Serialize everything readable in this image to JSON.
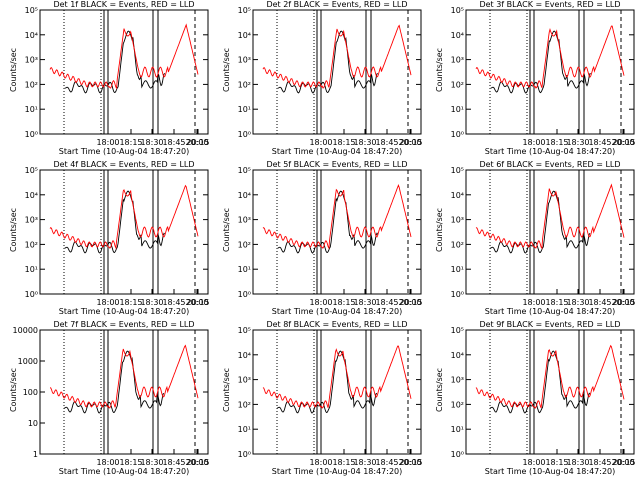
{
  "figure": {
    "start_time_label": "Start Time (10-Aug-04 18:47:20)",
    "ylabel": "Counts/sec",
    "time_ticks": [
      "18:00",
      "18:15",
      "18:30",
      "18:45",
      "20:00",
      "20:15"
    ],
    "colors": {
      "events": "#000000",
      "lld": "#ff0000",
      "background": "#ffffff"
    }
  },
  "chart_data": [
    {
      "type": "line",
      "title": "Det 1f BLACK = Events, RED = LLD",
      "ylabel": "Counts/sec",
      "xlabel": "Start Time (10-Aug-04 18:47:20)",
      "yscale": "log",
      "ylim": [
        1,
        100000
      ],
      "ytick_labels": [
        "10⁰",
        "10¹",
        "10²",
        "10³",
        "10⁴",
        "10⁵"
      ],
      "grid": false,
      "series": [
        {
          "name": "Events",
          "color": "#000000"
        },
        {
          "name": "LLD",
          "color": "#ff0000"
        }
      ]
    },
    {
      "type": "line",
      "title": "Det 2f BLACK = Events, RED = LLD",
      "ylabel": "Counts/sec",
      "xlabel": "Start Time (10-Aug-04 18:47:20)",
      "yscale": "log",
      "ylim": [
        1,
        100000
      ],
      "ytick_labels": [
        "10⁰",
        "10¹",
        "10²",
        "10³",
        "10⁴",
        "10⁵"
      ],
      "grid": false,
      "series": [
        {
          "name": "Events",
          "color": "#000000"
        },
        {
          "name": "LLD",
          "color": "#ff0000"
        }
      ]
    },
    {
      "type": "line",
      "title": "Det 3f BLACK = Events, RED = LLD",
      "ylabel": "Counts/sec",
      "xlabel": "Start Time (10-Aug-04 18:47:20)",
      "yscale": "log",
      "ylim": [
        1,
        100000
      ],
      "ytick_labels": [
        "10⁰",
        "10¹",
        "10²",
        "10³",
        "10⁴",
        "10⁵"
      ],
      "grid": false,
      "series": [
        {
          "name": "Events",
          "color": "#000000"
        },
        {
          "name": "LLD",
          "color": "#ff0000"
        }
      ]
    },
    {
      "type": "line",
      "title": "Det 4f BLACK = Events, RED = LLD",
      "ylabel": "Counts/sec",
      "xlabel": "Start Time (10-Aug-04 18:47:20)",
      "yscale": "log",
      "ylim": [
        1,
        100000
      ],
      "ytick_labels": [
        "10⁰",
        "10¹",
        "10²",
        "10³",
        "10⁴",
        "10⁵"
      ],
      "grid": false,
      "series": [
        {
          "name": "Events",
          "color": "#000000"
        },
        {
          "name": "LLD",
          "color": "#ff0000"
        }
      ]
    },
    {
      "type": "line",
      "title": "Det 5f BLACK = Events, RED = LLD",
      "ylabel": "Counts/sec",
      "xlabel": "Start Time (10-Aug-04 18:47:20)",
      "yscale": "log",
      "ylim": [
        1,
        100000
      ],
      "ytick_labels": [
        "10⁰",
        "10¹",
        "10²",
        "10³",
        "10⁴",
        "10⁵"
      ],
      "grid": false,
      "series": [
        {
          "name": "Events",
          "color": "#000000"
        },
        {
          "name": "LLD",
          "color": "#ff0000"
        }
      ]
    },
    {
      "type": "line",
      "title": "Det 6f BLACK = Events, RED = LLD",
      "ylabel": "Counts/sec",
      "xlabel": "Start Time (10-Aug-04 18:47:20)",
      "yscale": "log",
      "ylim": [
        1,
        100000
      ],
      "ytick_labels": [
        "10⁰",
        "10¹",
        "10²",
        "10³",
        "10⁴",
        "10⁵"
      ],
      "grid": false,
      "series": [
        {
          "name": "Events",
          "color": "#000000"
        },
        {
          "name": "LLD",
          "color": "#ff0000"
        }
      ]
    },
    {
      "type": "line",
      "title": "Det 7f BLACK = Events, RED = LLD",
      "ylabel": "Counts/sec",
      "xlabel": "Start Time (10-Aug-04 18:47:20)",
      "yscale": "log",
      "ylim": [
        1,
        10000
      ],
      "ytick_labels": [
        "1",
        "10",
        "100",
        "1000",
        "10000"
      ],
      "grid": false,
      "series": [
        {
          "name": "Events",
          "color": "#000000"
        },
        {
          "name": "LLD",
          "color": "#ff0000"
        }
      ]
    },
    {
      "type": "line",
      "title": "Det 8f BLACK = Events, RED = LLD",
      "ylabel": "Counts/sec",
      "xlabel": "Start Time (10-Aug-04 18:47:20)",
      "yscale": "log",
      "ylim": [
        1,
        100000
      ],
      "ytick_labels": [
        "10⁰",
        "10¹",
        "10²",
        "10³",
        "10⁴",
        "10⁵"
      ],
      "grid": false,
      "series": [
        {
          "name": "Events",
          "color": "#000000"
        },
        {
          "name": "LLD",
          "color": "#ff0000"
        }
      ]
    },
    {
      "type": "line",
      "title": "Det 9f BLACK = Events, RED = LLD",
      "ylabel": "Counts/sec",
      "xlabel": "Start Time (10-Aug-04 18:47:20)",
      "yscale": "log",
      "ylim": [
        1,
        100000
      ],
      "ytick_labels": [
        "10⁰",
        "10¹",
        "10²",
        "10³",
        "10⁴",
        "10⁵"
      ],
      "grid": false,
      "series": [
        {
          "name": "Events",
          "color": "#000000"
        },
        {
          "name": "LLD",
          "color": "#ff0000"
        }
      ]
    }
  ]
}
